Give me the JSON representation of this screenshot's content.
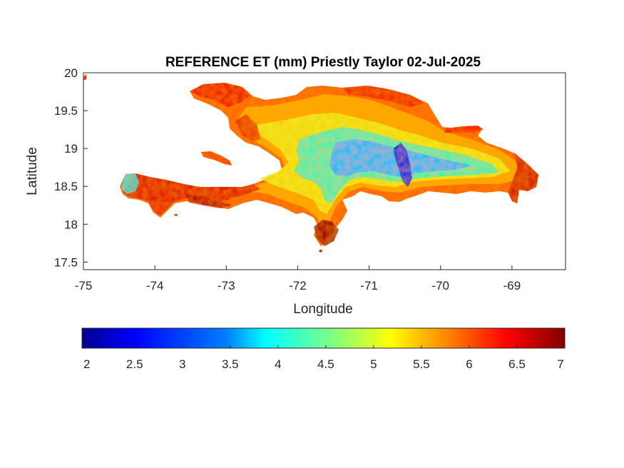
{
  "map": {
    "title": "REFERENCE ET (mm) Priestly Taylor 02-Jul-2025",
    "xlabel": "Longitude",
    "ylabel": "Latitude",
    "xlim": [
      -75,
      -68.25
    ],
    "ylim": [
      17.4,
      20
    ],
    "xticks": [
      {
        "value": -75,
        "label": "-75"
      },
      {
        "value": -74,
        "label": "-74"
      },
      {
        "value": -73,
        "label": "-73"
      },
      {
        "value": -72,
        "label": "-72"
      },
      {
        "value": -71,
        "label": "-71"
      },
      {
        "value": -70,
        "label": "-70"
      },
      {
        "value": -69,
        "label": "-69"
      }
    ],
    "yticks": [
      {
        "value": 20,
        "label": "20"
      },
      {
        "value": 19.5,
        "label": "19.5"
      },
      {
        "value": 19,
        "label": "19"
      },
      {
        "value": 18.5,
        "label": "18.5"
      },
      {
        "value": 18,
        "label": "18"
      },
      {
        "value": 17.5,
        "label": "17.5"
      }
    ],
    "region": "Hispaniola",
    "colormap": "jet"
  },
  "colorbar": {
    "range": [
      1.95,
      7
    ],
    "ticks": [
      {
        "value": 2,
        "label": "2"
      },
      {
        "value": 2.5,
        "label": "2.5"
      },
      {
        "value": 3,
        "label": "3"
      },
      {
        "value": 3.5,
        "label": "3.5"
      },
      {
        "value": 4,
        "label": "4"
      },
      {
        "value": 4.5,
        "label": "4.5"
      },
      {
        "value": 5,
        "label": "5"
      },
      {
        "value": 5.5,
        "label": "5.5"
      },
      {
        "value": 6,
        "label": "6"
      },
      {
        "value": 6.5,
        "label": "6.5"
      },
      {
        "value": 7,
        "label": "7"
      }
    ],
    "stops": [
      "#00008f",
      "#0000ff",
      "#0080ff",
      "#00ffff",
      "#80ff80",
      "#ffff00",
      "#ff8000",
      "#ff0000",
      "#800000"
    ]
  }
}
